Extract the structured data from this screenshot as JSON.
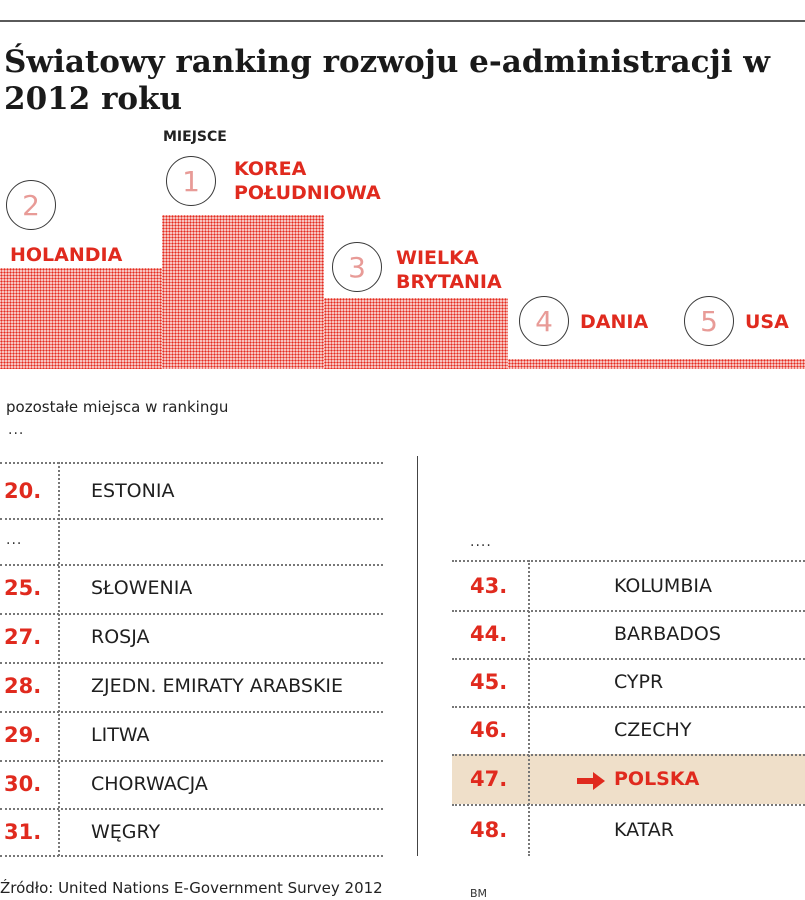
{
  "title": "Światowy ranking rozwoju e-administracji w 2012 roku",
  "top_label": "MIEJSCE",
  "others_label": "pozostałe miejsca w rankingu",
  "ellipsis_short": "...",
  "ellipsis_long": "....",
  "source": "Źródło: United Nations E-Government Survey 2012",
  "credit": "BM",
  "colors": {
    "accent": "#e02a1e",
    "highlight": "#efdfc9",
    "rule": "#777777"
  },
  "chart_data": {
    "type": "table",
    "podium": [
      {
        "rank": "1",
        "country_line1": "KOREA",
        "country_line2": "POŁUDNIOWA"
      },
      {
        "rank": "2",
        "country_line1": "HOLANDIA",
        "country_line2": ""
      },
      {
        "rank": "3",
        "country_line1": "WIELKA",
        "country_line2": "BRYTANIA"
      },
      {
        "rank": "4",
        "country_line1": "DANIA",
        "country_line2": ""
      },
      {
        "rank": "5",
        "country_line1": "USA",
        "country_line2": ""
      }
    ],
    "left_table": [
      {
        "rank": "20.",
        "country": "ESTONIA"
      },
      {
        "rank": "...",
        "country": ""
      },
      {
        "rank": "25.",
        "country": "SŁOWENIA"
      },
      {
        "rank": "27.",
        "country": "ROSJA"
      },
      {
        "rank": "28.",
        "country": "ZJEDN. EMIRATY ARABSKIE"
      },
      {
        "rank": "29.",
        "country": "LITWA"
      },
      {
        "rank": "30.",
        "country": "CHORWACJA"
      },
      {
        "rank": "31.",
        "country": "WĘGRY"
      }
    ],
    "right_table": [
      {
        "rank": "43.",
        "country": "KOLUMBIA",
        "highlight": false
      },
      {
        "rank": "44.",
        "country": "BARBADOS",
        "highlight": false
      },
      {
        "rank": "45.",
        "country": "CYPR",
        "highlight": false
      },
      {
        "rank": "46.",
        "country": "CZECHY",
        "highlight": false
      },
      {
        "rank": "47.",
        "country": "POLSKA",
        "highlight": true
      },
      {
        "rank": "48.",
        "country": "KATAR",
        "highlight": false
      }
    ]
  }
}
